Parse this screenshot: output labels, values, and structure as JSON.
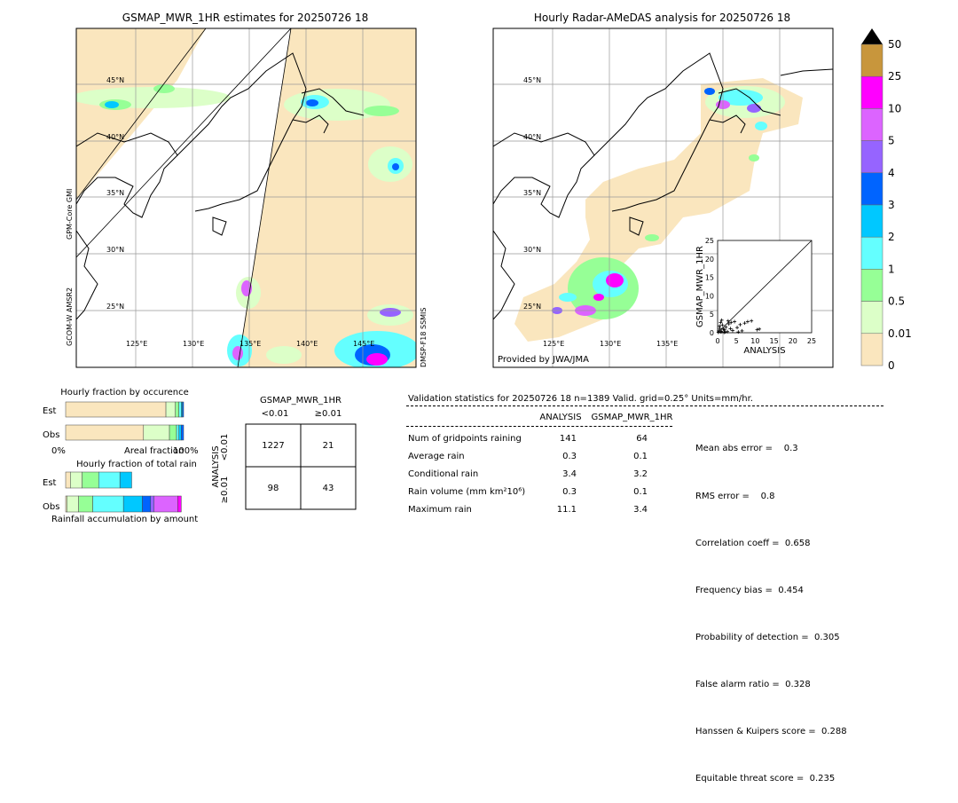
{
  "left_map": {
    "title": "GSMAP_MWR_1HR estimates for 20250726 18",
    "lat_labels": [
      "45°N",
      "40°N",
      "35°N",
      "30°N",
      "25°N"
    ],
    "lon_labels": [
      "125°E",
      "130°E",
      "135°E",
      "140°E",
      "145°E"
    ],
    "satellite_labels": [
      "GPM-Core GMI",
      "GCOM-W AMSR2",
      "DMSP-F18 SSMIS"
    ]
  },
  "right_map": {
    "title": "Hourly Radar-AMeDAS analysis for 20250726 18",
    "lat_labels": [
      "45°N",
      "40°N",
      "35°N",
      "30°N",
      "25°N"
    ],
    "lon_labels": [
      "125°E",
      "130°E",
      "135°E"
    ],
    "credit": "Provided by JWA/JMA"
  },
  "colorbar": {
    "labels": [
      "50",
      "25",
      "10",
      "5",
      "4",
      "3",
      "2",
      "1",
      "0.5",
      "0.01",
      "0"
    ],
    "colors": [
      "#c8963c",
      "#ff00ff",
      "#dc64ff",
      "#9664ff",
      "#0064ff",
      "#00c8ff",
      "#64ffff",
      "#96ff96",
      "#dcffc8",
      "#fae6be"
    ]
  },
  "scatter": {
    "xlabel": "ANALYSIS",
    "ylabel": "GSMAP_MWR_1HR",
    "ticks": [
      "0",
      "5",
      "10",
      "15",
      "20",
      "25"
    ],
    "range": [
      0,
      25
    ],
    "points": [
      [
        0.3,
        0.5
      ],
      [
        0.6,
        1.2
      ],
      [
        1.0,
        0.4
      ],
      [
        1.3,
        2.1
      ],
      [
        1.8,
        0.8
      ],
      [
        2.2,
        1.5
      ],
      [
        2.6,
        0.3
      ],
      [
        3.0,
        2.4
      ],
      [
        0.8,
        2.8
      ],
      [
        1.5,
        1.0
      ],
      [
        2.0,
        0.2
      ],
      [
        3.4,
        1.1
      ],
      [
        0.5,
        1.8
      ],
      [
        4.0,
        0.6
      ],
      [
        5.2,
        1.4
      ],
      [
        6.0,
        2.2
      ],
      [
        4.5,
        3.0
      ],
      [
        7.2,
        2.6
      ],
      [
        8.0,
        3.0
      ],
      [
        9.0,
        3.2
      ],
      [
        10.5,
        0.8
      ],
      [
        11.1,
        1.0
      ],
      [
        6.5,
        0.5
      ],
      [
        2.8,
        3.2
      ],
      [
        3.6,
        2.8
      ],
      [
        1.1,
        3.4
      ],
      [
        0.2,
        0.1
      ],
      [
        0.9,
        0.2
      ],
      [
        1.7,
        0.1
      ],
      [
        5.5,
        0.2
      ]
    ]
  },
  "occurrence": {
    "title": "Hourly fraction by occurence",
    "rows": [
      "Est",
      "Obs"
    ],
    "axis_left": "0%",
    "axis_mid": "Areal fraction",
    "axis_right": "100%"
  },
  "total_rain": {
    "title": "Hourly fraction of total rain",
    "rows": [
      "Est",
      "Obs"
    ],
    "footer": "Rainfall accumulation by amount"
  },
  "contingency": {
    "title": "GSMAP_MWR_1HR",
    "col_labels": [
      "<0.01",
      "≥0.01"
    ],
    "row_axis": "ANALYSIS",
    "row_labels": [
      "<0.01",
      "≥0.01"
    ],
    "cells": [
      [
        "1227",
        "21"
      ],
      [
        "98",
        "43"
      ]
    ]
  },
  "validation": {
    "header": "Validation statistics for 20250726 18  n=1389 Valid. grid=0.25° Units=mm/hr.",
    "col_analysis": "ANALYSIS",
    "col_gsmap": "GSMAP_MWR_1HR",
    "rows": [
      {
        "label": "Num of gridpoints raining",
        "analysis": "141",
        "gsmap": "64"
      },
      {
        "label": "Average rain",
        "analysis": "0.3",
        "gsmap": "0.1"
      },
      {
        "label": "Conditional rain",
        "analysis": "3.4",
        "gsmap": "3.2"
      },
      {
        "label": "Rain volume (mm km²10⁶)",
        "analysis": "0.3",
        "gsmap": "0.1"
      },
      {
        "label": "Maximum rain",
        "analysis": "11.1",
        "gsmap": "3.4"
      }
    ],
    "scores": [
      "Mean abs error =    0.3",
      "RMS error =    0.8",
      "Correlation coeff =  0.658",
      "Frequency bias =  0.454",
      "Probability of detection =  0.305",
      "False alarm ratio =  0.328",
      "Hanssen & Kuipers score =  0.288",
      "Equitable threat score =  0.235"
    ]
  },
  "chart_data": [
    {
      "type": "scatter",
      "title": "",
      "xlabel": "ANALYSIS",
      "ylabel": "GSMAP_MWR_1HR",
      "xlim": [
        0,
        25
      ],
      "ylim": [
        0,
        25
      ]
    },
    {
      "type": "bar",
      "title": "Hourly fraction by occurence",
      "categories": [
        "Est",
        "Obs"
      ],
      "series": [
        {
          "color": "#fae6be",
          "values": [
            0.85,
            0.66
          ]
        },
        {
          "color": "#dcffc8",
          "values": [
            0.08,
            0.22
          ]
        },
        {
          "color": "#96ff96",
          "values": [
            0.03,
            0.06
          ]
        },
        {
          "color": "#64ffff",
          "values": [
            0.02,
            0.02
          ]
        },
        {
          "color": "#00c8ff",
          "values": [
            0.01,
            0.02
          ]
        },
        {
          "color": "#0064ff",
          "values": [
            0.01,
            0.02
          ]
        }
      ]
    },
    {
      "type": "bar",
      "title": "Hourly fraction of total rain",
      "categories": [
        "Est",
        "Obs"
      ],
      "series": [
        {
          "color": "#fae6be",
          "values": [
            0.04,
            0.01
          ]
        },
        {
          "color": "#dcffc8",
          "values": [
            0.1,
            0.1
          ]
        },
        {
          "color": "#96ff96",
          "values": [
            0.14,
            0.12
          ]
        },
        {
          "color": "#64ffff",
          "values": [
            0.18,
            0.26
          ]
        },
        {
          "color": "#00c8ff",
          "values": [
            0.1,
            0.16
          ]
        },
        {
          "color": "#0064ff",
          "values": [
            0.0,
            0.07
          ]
        },
        {
          "color": "#9664ff",
          "values": [
            0.0,
            0.03
          ]
        },
        {
          "color": "#dc64ff",
          "values": [
            0.0,
            0.2
          ]
        },
        {
          "color": "#ff00ff",
          "values": [
            0.0,
            0.03
          ]
        }
      ]
    }
  ]
}
